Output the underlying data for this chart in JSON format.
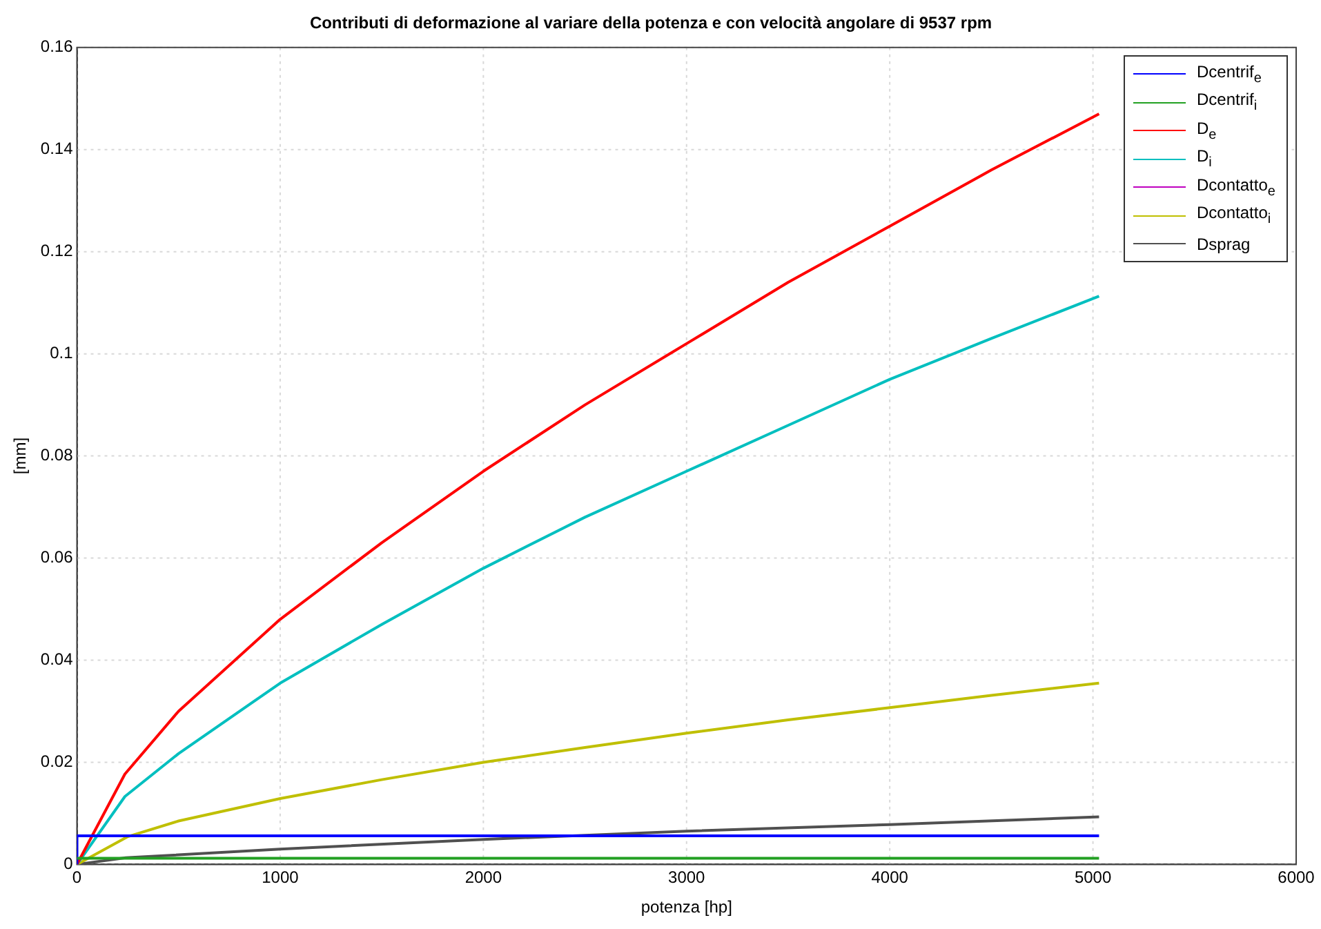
{
  "chart_data": {
    "type": "line",
    "title": "Contributi di deformazione al variare della potenza e con velocità angolare di 9537 rpm",
    "xlabel": "potenza [hp]",
    "ylabel": "[mm]",
    "xlim": [
      0,
      6000
    ],
    "xticks": [
      0,
      1000,
      2000,
      3000,
      4000,
      5000,
      6000
    ],
    "ylim": [
      0,
      0.16
    ],
    "yticks": [
      0,
      0.02,
      0.04,
      0.06,
      0.08,
      0.1,
      0.12,
      0.14,
      0.16
    ],
    "grid": true,
    "legend": "top right",
    "marker": "none",
    "line_style": "solid",
    "series": [
      {
        "name": "Dcentrif$_{e}$",
        "color": "#0000ff",
        "x": [
          0,
          0,
          5030
        ],
        "values": [
          0,
          0.0056,
          0.0056
        ]
      },
      {
        "name": "Dcentrif$_{i}$",
        "color": "#22a022",
        "x": [
          0,
          5030
        ],
        "values": [
          0.0012,
          0.0012
        ]
      },
      {
        "name": "D$_{e}$",
        "color": "#ff0000",
        "x": [
          0,
          236,
          500,
          1000,
          1500,
          2000,
          2500,
          3000,
          3500,
          4000,
          4500,
          5030
        ],
        "values": [
          0,
          0.0177,
          0.03,
          0.048,
          0.063,
          0.077,
          0.09,
          0.102,
          0.114,
          0.125,
          0.136,
          0.147
        ]
      },
      {
        "name": "D$_{i}$",
        "color": "#00bfbf",
        "x": [
          0,
          236,
          500,
          1000,
          1500,
          2000,
          2500,
          3000,
          3500,
          4000,
          4500,
          5030
        ],
        "values": [
          0,
          0.0133,
          0.0217,
          0.0355,
          0.047,
          0.058,
          0.068,
          0.077,
          0.086,
          0.095,
          0.103,
          0.1113
        ]
      },
      {
        "name": "Dcontatto$_{e}$",
        "color": "#bf00bf"
      },
      {
        "name": "Dcontatto$_{i}$",
        "color": "#bfbf00",
        "x": [
          0,
          248,
          500,
          1000,
          1500,
          2000,
          2500,
          3000,
          3500,
          4000,
          4500,
          5030
        ],
        "values": [
          0,
          0.0054,
          0.0085,
          0.0129,
          0.0166,
          0.02,
          0.0229,
          0.0257,
          0.0283,
          0.0307,
          0.0331,
          0.0355
        ]
      },
      {
        "name": "Dsprag",
        "color": "#505050",
        "x": [
          0,
          240,
          1000,
          2000,
          3000,
          4000,
          5030
        ],
        "values": [
          0,
          0.0013,
          0.003,
          0.0049,
          0.0065,
          0.0078,
          0.0093
        ]
      }
    ]
  }
}
